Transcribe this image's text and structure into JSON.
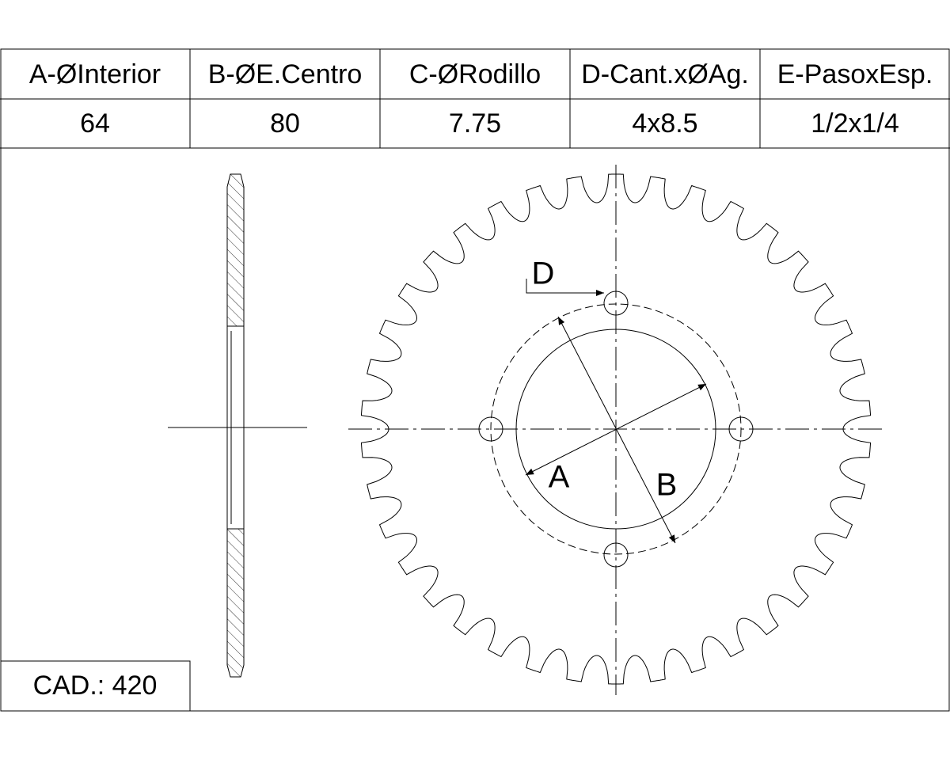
{
  "table": {
    "headers": [
      "A-ØInterior",
      "B-ØE.Centro",
      "C-ØRodillo",
      "D-Cant.xØAg.",
      "E-PasoxEsp."
    ],
    "rows": [
      [
        "64",
        "80",
        "7.75",
        "4x8.5",
        "1/2x1/4"
      ]
    ]
  },
  "labels": {
    "a": "A",
    "b": "B",
    "d": "D"
  },
  "footer": "CAD.: 420"
}
